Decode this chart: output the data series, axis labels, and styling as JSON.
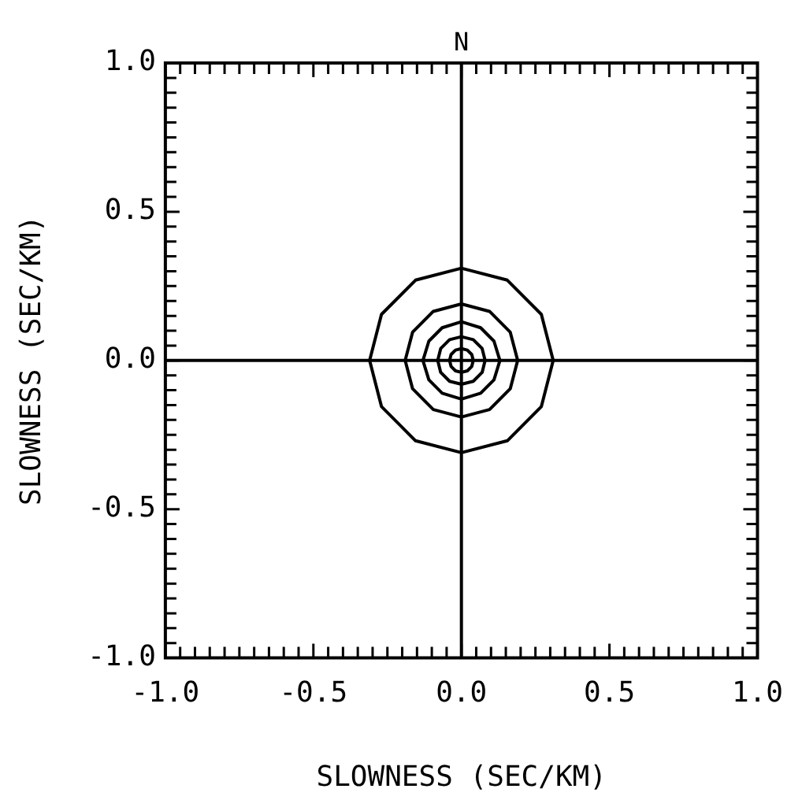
{
  "chart_data": {
    "type": "line",
    "xlabel": "SLOWNESS (SEC/KM)",
    "ylabel": "SLOWNESS (SEC/KM)",
    "annotations": [
      {
        "text": "N",
        "x": 0,
        "y": 1
      }
    ],
    "xlim": [
      -1,
      1
    ],
    "ylim": [
      -1,
      1
    ],
    "xticks": [
      {
        "value": -1,
        "label": "-1.0"
      },
      {
        "value": -0.95,
        "label": null
      },
      {
        "value": -0.9,
        "label": null
      },
      {
        "value": -0.85,
        "label": null
      },
      {
        "value": -0.8,
        "label": null
      },
      {
        "value": -0.75,
        "label": null
      },
      {
        "value": -0.7,
        "label": null
      },
      {
        "value": -0.65,
        "label": null
      },
      {
        "value": -0.6,
        "label": null
      },
      {
        "value": -0.55,
        "label": null
      },
      {
        "value": -0.5,
        "label": "-0.5"
      },
      {
        "value": -0.45,
        "label": null
      },
      {
        "value": -0.4,
        "label": null
      },
      {
        "value": -0.35,
        "label": null
      },
      {
        "value": -0.3,
        "label": null
      },
      {
        "value": -0.25,
        "label": null
      },
      {
        "value": -0.2,
        "label": null
      },
      {
        "value": -0.15,
        "label": null
      },
      {
        "value": -0.1,
        "label": null
      },
      {
        "value": -0.05,
        "label": null
      },
      {
        "value": 0,
        "label": "0.0"
      },
      {
        "value": 0.05,
        "label": null
      },
      {
        "value": 0.1,
        "label": null
      },
      {
        "value": 0.15,
        "label": null
      },
      {
        "value": 0.2,
        "label": null
      },
      {
        "value": 0.25,
        "label": null
      },
      {
        "value": 0.3,
        "label": null
      },
      {
        "value": 0.35,
        "label": null
      },
      {
        "value": 0.4,
        "label": null
      },
      {
        "value": 0.45,
        "label": null
      },
      {
        "value": 0.5,
        "label": "0.5"
      },
      {
        "value": 0.55,
        "label": null
      },
      {
        "value": 0.6,
        "label": null
      },
      {
        "value": 0.65,
        "label": null
      },
      {
        "value": 0.7,
        "label": null
      },
      {
        "value": 0.75,
        "label": null
      },
      {
        "value": 0.8,
        "label": null
      },
      {
        "value": 0.85,
        "label": null
      },
      {
        "value": 0.9,
        "label": null
      },
      {
        "value": 0.95,
        "label": null
      },
      {
        "value": 1,
        "label": "1.0"
      }
    ],
    "yticks": [
      {
        "value": -1,
        "label": "-1.0"
      },
      {
        "value": -0.95,
        "label": null
      },
      {
        "value": -0.9,
        "label": null
      },
      {
        "value": -0.85,
        "label": null
      },
      {
        "value": -0.8,
        "label": null
      },
      {
        "value": -0.75,
        "label": null
      },
      {
        "value": -0.7,
        "label": null
      },
      {
        "value": -0.65,
        "label": null
      },
      {
        "value": -0.6,
        "label": null
      },
      {
        "value": -0.55,
        "label": null
      },
      {
        "value": -0.5,
        "label": "-0.5"
      },
      {
        "value": -0.45,
        "label": null
      },
      {
        "value": -0.4,
        "label": null
      },
      {
        "value": -0.35,
        "label": null
      },
      {
        "value": -0.3,
        "label": null
      },
      {
        "value": -0.25,
        "label": null
      },
      {
        "value": -0.2,
        "label": null
      },
      {
        "value": -0.15,
        "label": null
      },
      {
        "value": -0.1,
        "label": null
      },
      {
        "value": -0.05,
        "label": null
      },
      {
        "value": 0,
        "label": "0.0"
      },
      {
        "value": 0.05,
        "label": null
      },
      {
        "value": 0.1,
        "label": null
      },
      {
        "value": 0.15,
        "label": null
      },
      {
        "value": 0.2,
        "label": null
      },
      {
        "value": 0.25,
        "label": null
      },
      {
        "value": 0.3,
        "label": null
      },
      {
        "value": 0.35,
        "label": null
      },
      {
        "value": 0.4,
        "label": null
      },
      {
        "value": 0.45,
        "label": null
      },
      {
        "value": 0.5,
        "label": "0.5"
      },
      {
        "value": 0.55,
        "label": null
      },
      {
        "value": 0.6,
        "label": null
      },
      {
        "value": 0.65,
        "label": null
      },
      {
        "value": 0.7,
        "label": null
      },
      {
        "value": 0.75,
        "label": null
      },
      {
        "value": 0.8,
        "label": null
      },
      {
        "value": 0.85,
        "label": null
      },
      {
        "value": 0.9,
        "label": null
      },
      {
        "value": 0.95,
        "label": null
      },
      {
        "value": 1,
        "label": "1.0"
      }
    ],
    "marker": "none",
    "line_style": "solid",
    "series": [
      {
        "color": "#000000",
        "x": [
          0,
          0
        ],
        "values": [
          -1,
          1
        ]
      },
      {
        "color": "#000000",
        "x": [
          -1,
          1
        ],
        "values": [
          0,
          0
        ]
      },
      {
        "color": "#000000",
        "x": [
          -0.31,
          -0.27,
          -0.155,
          0,
          0.155,
          0.27,
          0.31
        ],
        "values": [
          0,
          0.155,
          0.27,
          0.31,
          0.27,
          0.155,
          0
        ]
      },
      {
        "color": "#000000",
        "x": [
          -0.31,
          -0.27,
          -0.155,
          0,
          0.155,
          0.27,
          0.31
        ],
        "values": [
          0,
          -0.155,
          -0.27,
          -0.31,
          -0.27,
          -0.155,
          0
        ]
      },
      {
        "color": "#000000",
        "x": [
          -0.19,
          -0.165,
          -0.095,
          0,
          0.095,
          0.165,
          0.19
        ],
        "values": [
          0,
          0.095,
          0.165,
          0.19,
          0.165,
          0.095,
          0
        ]
      },
      {
        "color": "#000000",
        "x": [
          -0.19,
          -0.165,
          -0.095,
          0,
          0.095,
          0.165,
          0.19
        ],
        "values": [
          0,
          -0.095,
          -0.165,
          -0.19,
          -0.165,
          -0.095,
          0
        ]
      },
      {
        "color": "#000000",
        "x": [
          -0.13,
          -0.11,
          -0.065,
          0,
          0.065,
          0.11,
          0.13
        ],
        "values": [
          0,
          0.065,
          0.11,
          0.13,
          0.11,
          0.065,
          0
        ]
      },
      {
        "color": "#000000",
        "x": [
          -0.13,
          -0.11,
          -0.065,
          0,
          0.065,
          0.11,
          0.13
        ],
        "values": [
          0,
          -0.065,
          -0.11,
          -0.13,
          -0.11,
          -0.065,
          0
        ]
      },
      {
        "color": "#000000",
        "x": [
          -0.08,
          -0.07,
          -0.04,
          0,
          0.04,
          0.07,
          0.08
        ],
        "values": [
          0,
          0.04,
          0.07,
          0.08,
          0.07,
          0.04,
          0
        ]
      },
      {
        "color": "#000000",
        "x": [
          -0.08,
          -0.07,
          -0.04,
          0,
          0.04,
          0.07,
          0.08
        ],
        "values": [
          0,
          -0.04,
          -0.07,
          -0.08,
          -0.07,
          -0.04,
          0
        ]
      },
      {
        "color": "#000000",
        "x": [
          -0.04,
          -0.035,
          -0.02,
          0,
          0.02,
          0.035,
          0.04
        ],
        "values": [
          0,
          0.02,
          0.035,
          0.04,
          0.035,
          0.02,
          0
        ]
      },
      {
        "color": "#000000",
        "x": [
          -0.04,
          -0.035,
          -0.02,
          0,
          0.02,
          0.035,
          0.04
        ],
        "values": [
          0,
          -0.02,
          -0.035,
          -0.04,
          -0.035,
          -0.02,
          0
        ]
      }
    ]
  }
}
